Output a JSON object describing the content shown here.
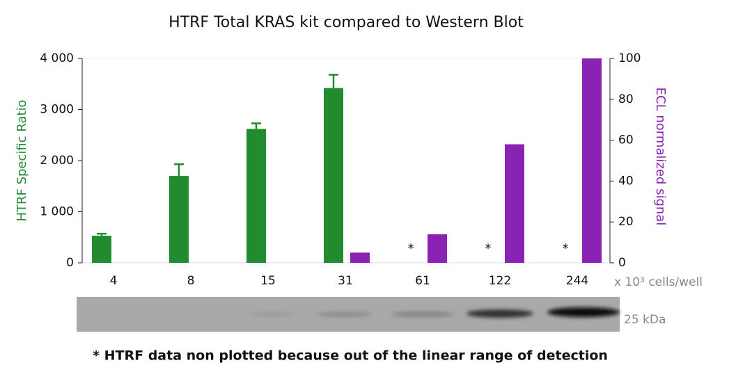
{
  "chart_data": {
    "type": "bar",
    "title": "HTRF Total KRAS kit compared to Western Blot",
    "categories": [
      "4",
      "8",
      "15",
      "31",
      "61",
      "122",
      "244"
    ],
    "x_label": "x 10³ cells/well",
    "y_label": "HTRF Specific Ratio",
    "y2_label": "ECL normalized signal",
    "series": [
      {
        "color": "#228b2e",
        "values": [
          530,
          1700,
          2620,
          3420,
          null,
          null,
          null
        ],
        "errors": [
          40,
          230,
          110,
          260,
          null,
          null,
          null
        ]
      },
      {
        "color": "#8a22b4",
        "axis": "y2",
        "values": [
          null,
          null,
          null,
          5,
          14,
          58,
          100
        ]
      }
    ],
    "markers": [
      null,
      null,
      null,
      null,
      "*",
      "*",
      "*"
    ],
    "ylim": [
      0,
      4000
    ],
    "yticks": [
      0,
      {
        "value": 1000,
        "label": "1 000"
      },
      {
        "value": 2000,
        "label": "2 000"
      },
      {
        "value": 3000,
        "label": "3 000"
      },
      {
        "value": 4000,
        "label": "4 000"
      }
    ],
    "y2lim": [
      0,
      100
    ],
    "y2ticks": [
      0,
      20,
      40,
      60,
      80,
      100
    ],
    "blot_label": "25 kDa",
    "footnote": "* HTRF data non plotted because out of the linear range of detection"
  }
}
